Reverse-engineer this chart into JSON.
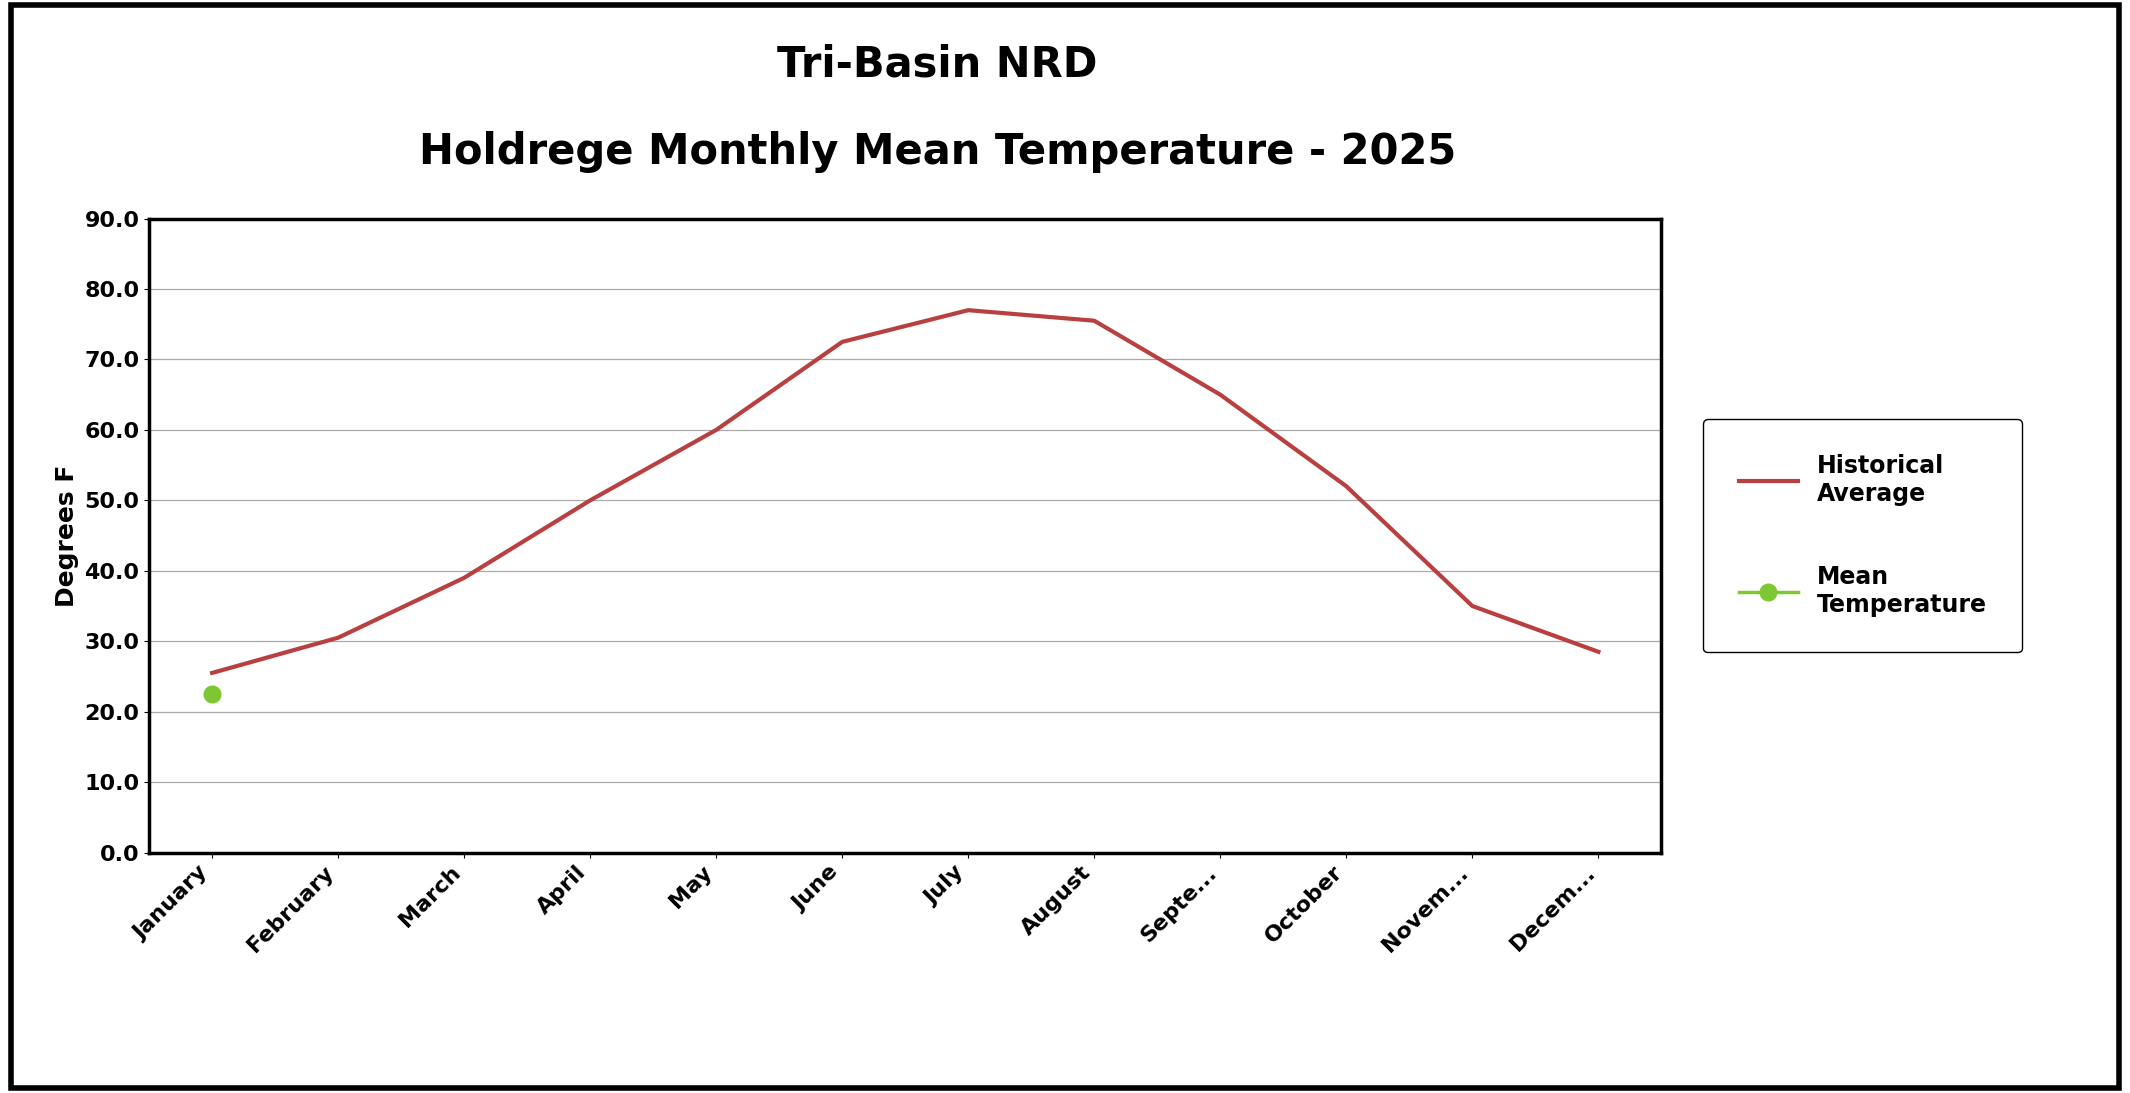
{
  "title_line1": "Tri-Basin NRD",
  "title_line2": "Holdrege Monthly Mean Temperature - 2025",
  "ylabel": "Degrees F",
  "months": [
    "January",
    "February",
    "March",
    "April",
    "May",
    "June",
    "July",
    "August",
    "Septe...",
    "October",
    "Novem...",
    "Decem..."
  ],
  "historical_avg": [
    25.5,
    30.5,
    39.0,
    50.0,
    60.0,
    72.5,
    77.0,
    75.5,
    65.0,
    52.0,
    35.0,
    28.5
  ],
  "mean_temp": [
    22.5,
    null,
    null,
    null,
    null,
    null,
    null,
    null,
    null,
    null,
    null,
    null
  ],
  "ylim_min": 0.0,
  "ylim_max": 90.0,
  "ytick_step": 10.0,
  "hist_color": "#b94040",
  "mean_color": "#7dc832",
  "hist_linewidth": 3.0,
  "mean_linewidth": 2.5,
  "mean_markersize": 12,
  "legend_label_hist": "Historical\nAverage",
  "legend_label_mean": "Mean\nTemperature",
  "background_color": "#ffffff",
  "plot_bg_color": "#ffffff",
  "title_fontsize": 30,
  "label_fontsize": 18,
  "tick_fontsize": 16,
  "legend_fontsize": 17,
  "outer_border_color": "#000000",
  "outer_border_linewidth": 4.0
}
